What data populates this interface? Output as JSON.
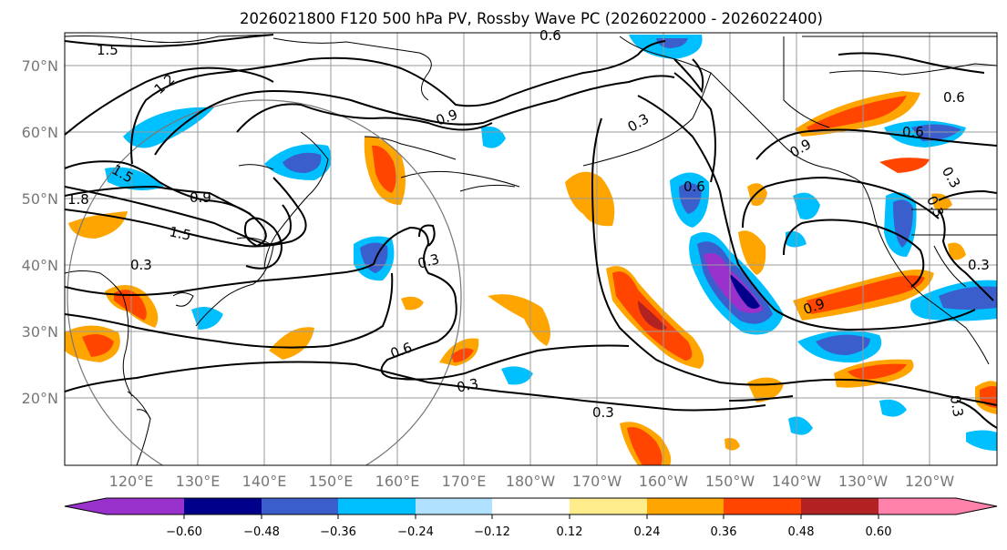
{
  "title": "2026021800 F120 500 hPa PV, Rossby Wave PC (2026022000 - 2026022400)",
  "lat_labels": [
    "70°N",
    "60°N",
    "50°N",
    "40°N",
    "30°N",
    "20°N"
  ],
  "lon_labels": [
    "120°E",
    "130°E",
    "140°E",
    "150°E",
    "160°E",
    "170°E",
    "180°W",
    "170°W",
    "160°W",
    "150°W",
    "140°W",
    "130°W",
    "120°W"
  ],
  "colorbar": {
    "ticks": [
      "−0.60",
      "−0.48",
      "−0.36",
      "−0.24",
      "−0.12",
      "0.12",
      "0.24",
      "0.36",
      "0.48",
      "0.60"
    ],
    "colors": [
      "#9932cc",
      "#00008b",
      "#3a5fcd",
      "#00bfff",
      "#b0e2ff",
      "#ffffff",
      "#ffec8b",
      "#ffa500",
      "#ff4500",
      "#b22222",
      "#ff82ab"
    ]
  },
  "contour_labels": [
    "1.5",
    "1.2",
    "0.9",
    "1.5",
    "1.8",
    "0.9",
    "1.5",
    "0.3",
    "0.3",
    "0.6",
    "0.3",
    "0.6",
    "0.3",
    "0.9",
    "0.3",
    "0.6",
    "0.3",
    "0.6",
    "0.3",
    "0.9",
    "0.6",
    "0.3",
    "0.3"
  ]
}
